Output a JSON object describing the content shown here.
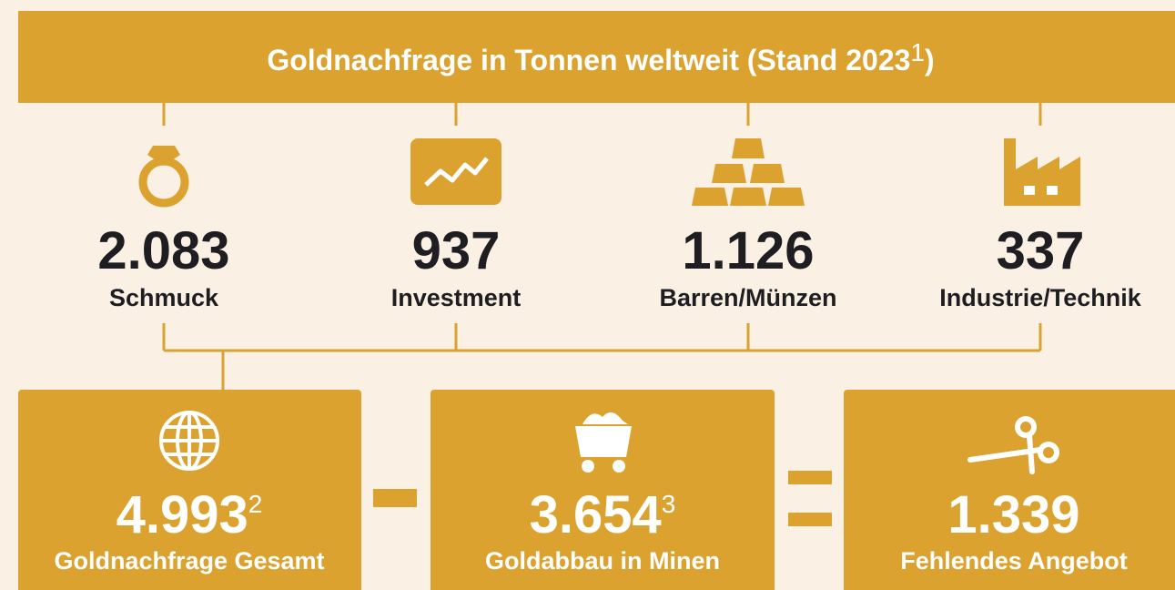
{
  "header": {
    "title": "Goldnachfrage in Tonnen weltweit (Stand 2023",
    "footnote": "1",
    "title_end": ")"
  },
  "categories": [
    {
      "value": "2.083",
      "label": "Schmuck"
    },
    {
      "value": "937",
      "label": "Investment"
    },
    {
      "value": "1.126",
      "label": "Barren/Münzen"
    },
    {
      "value": "337",
      "label": "Industrie/Technik"
    }
  ],
  "totals": [
    {
      "value": "4.993",
      "footnote": "2",
      "label": "Goldnachfrage Gesamt"
    },
    {
      "value": "3.654",
      "footnote": "3",
      "label": "Goldabbau in Minen"
    },
    {
      "value": "1.339",
      "label": "Fehlendes Angebot"
    }
  ]
}
